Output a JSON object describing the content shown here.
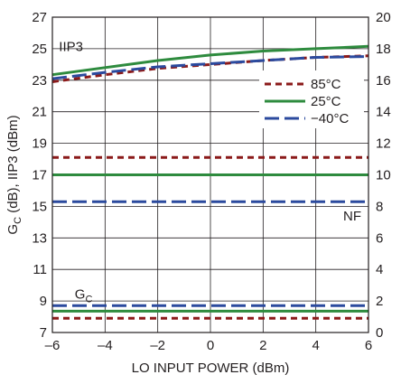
{
  "chart_data": {
    "type": "line",
    "xlabel": "LO INPUT POWER (dBm)",
    "ylabel_left": {
      "main": "G",
      "sub": "C",
      "rest": " (dB), IIP3 (dBm)"
    },
    "ylabel_right": "",
    "xlim": [
      -6,
      6
    ],
    "ylim_left": [
      7,
      27
    ],
    "ylim_right": [
      0,
      20
    ],
    "x_ticks": [
      -6,
      -4,
      -2,
      0,
      2,
      4,
      6
    ],
    "y_ticks_left": [
      7,
      9,
      11,
      13,
      15,
      17,
      19,
      21,
      23,
      25,
      27
    ],
    "y_ticks_right": [
      0,
      2,
      4,
      6,
      8,
      10,
      12,
      14,
      16,
      18,
      20
    ],
    "grid": true,
    "legend": {
      "placement": "right-middle",
      "entries": [
        {
          "label": "85°C",
          "color": "#8b1a1a",
          "style": "short-dash"
        },
        {
          "label": "25°C",
          "color": "#2e8b3e",
          "style": "solid"
        },
        {
          "label": "−40°C",
          "color": "#2b4a9e",
          "style": "long-dash"
        }
      ]
    },
    "annotations": {
      "iip3": "IIP3",
      "nf": "NF",
      "gc_main": "G",
      "gc_sub": "C"
    },
    "x": [
      -6,
      -4,
      -2,
      0,
      2,
      4,
      6
    ],
    "series": [
      {
        "group": "IIP3",
        "axis": "left",
        "temp": "85°C",
        "color": "#8b1a1a",
        "style": "short-dash",
        "values": [
          22.9,
          23.35,
          23.75,
          24.0,
          24.25,
          24.45,
          24.55
        ]
      },
      {
        "group": "IIP3",
        "axis": "left",
        "temp": "25°C",
        "color": "#2e8b3e",
        "style": "solid",
        "values": [
          23.35,
          23.8,
          24.25,
          24.6,
          24.85,
          25.0,
          25.15
        ]
      },
      {
        "group": "IIP3",
        "axis": "left",
        "temp": "−40°C",
        "color": "#2b4a9e",
        "style": "long-dash",
        "values": [
          23.1,
          23.5,
          23.85,
          24.05,
          24.25,
          24.45,
          24.5
        ]
      },
      {
        "group": "NF",
        "axis": "right",
        "temp": "85°C",
        "color": "#8b1a1a",
        "style": "short-dash",
        "values": [
          11.1,
          11.1,
          11.1,
          11.1,
          11.1,
          11.1,
          11.1
        ]
      },
      {
        "group": "NF",
        "axis": "right",
        "temp": "25°C",
        "color": "#2e8b3e",
        "style": "solid",
        "values": [
          10.0,
          10.0,
          10.0,
          10.0,
          10.0,
          10.0,
          10.0
        ]
      },
      {
        "group": "NF",
        "axis": "right",
        "temp": "−40°C",
        "color": "#2b4a9e",
        "style": "long-dash",
        "values": [
          8.3,
          8.3,
          8.3,
          8.3,
          8.3,
          8.3,
          8.3
        ]
      },
      {
        "group": "GC",
        "axis": "left",
        "temp": "85°C",
        "color": "#8b1a1a",
        "style": "short-dash",
        "values": [
          7.9,
          7.9,
          7.9,
          7.9,
          7.9,
          7.9,
          7.9
        ]
      },
      {
        "group": "GC",
        "axis": "left",
        "temp": "25°C",
        "color": "#2e8b3e",
        "style": "solid",
        "values": [
          8.35,
          8.35,
          8.35,
          8.35,
          8.35,
          8.35,
          8.35
        ]
      },
      {
        "group": "GC",
        "axis": "left",
        "temp": "−40°C",
        "color": "#2b4a9e",
        "style": "long-dash",
        "values": [
          8.7,
          8.7,
          8.7,
          8.7,
          8.7,
          8.7,
          8.7
        ]
      }
    ]
  }
}
